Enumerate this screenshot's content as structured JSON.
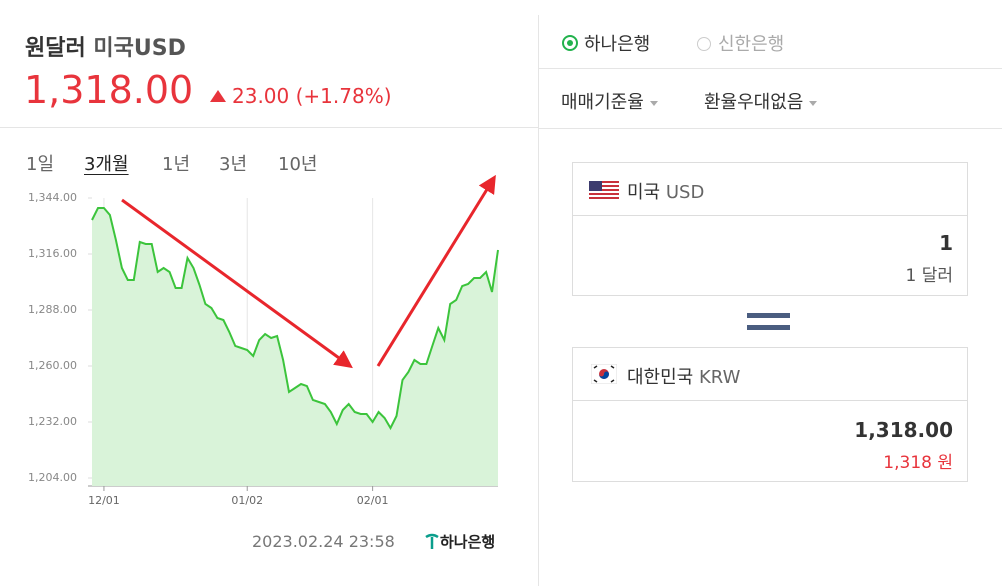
{
  "header": {
    "pair": "원달러",
    "name": "미국USD",
    "rate": "1,318.00",
    "change": "23.00",
    "change_pct": "(+1.78%)"
  },
  "periods": [
    "1일",
    "3개월",
    "1년",
    "3년",
    "10년"
  ],
  "chart_data": {
    "type": "line",
    "color": "#3cc43c",
    "fill": "#d9f3d9",
    "grid": "x",
    "categories": [
      null,
      null,
      "12/01",
      null,
      null,
      null,
      null,
      null,
      null,
      null,
      null,
      null,
      null,
      null,
      null,
      null,
      null,
      null,
      null,
      null,
      null,
      null,
      null,
      null,
      null,
      null,
      "01/02",
      null,
      null,
      null,
      null,
      null,
      null,
      null,
      null,
      null,
      null,
      null,
      null,
      null,
      null,
      null,
      null,
      null,
      null,
      null,
      null,
      "02/01",
      null,
      null,
      null,
      null,
      null,
      null,
      null,
      null,
      null,
      null,
      null,
      null,
      null,
      null,
      null,
      null,
      null,
      null,
      null,
      null,
      null
    ],
    "values": [
      1333,
      1339,
      1339,
      1335.5,
      1323,
      1309,
      1303,
      1303,
      1322,
      1321,
      1321,
      1307,
      1309,
      1307,
      1299,
      1299,
      1314,
      1309,
      1300.5,
      1291,
      1289,
      1284,
      1283,
      1277,
      1270,
      1269,
      1268,
      1265,
      1273,
      1276,
      1274,
      1275,
      1263,
      1247,
      1249,
      1251,
      1250,
      1243,
      1242,
      1241,
      1237,
      1231,
      1238,
      1241,
      1237,
      1236,
      1236,
      1232,
      1237,
      1234,
      1229,
      1235,
      1253,
      1257,
      1263,
      1261,
      1261,
      1270,
      1279,
      1273,
      1291,
      1293,
      1300,
      1301,
      1304,
      1304,
      1307,
      1297,
      1318
    ],
    "ylim": [
      1204,
      1344
    ],
    "yticks": [
      {
        "value": 1344,
        "label": "1,344.00"
      },
      {
        "value": 1316,
        "label": "1,316.00"
      },
      {
        "value": 1288,
        "label": "1,288.00"
      },
      {
        "value": 1260,
        "label": "1,260.00"
      },
      {
        "value": 1232,
        "label": "1,232.00"
      },
      {
        "value": 1204,
        "label": "1,204.00"
      }
    ]
  },
  "timestamp": "2023.02.24 23:58",
  "source": "하나은행",
  "banks": [
    "하나은행",
    "신한은행"
  ],
  "options": [
    "매매기준율",
    "환율우대없음"
  ],
  "converter": {
    "from": {
      "country": "미국",
      "code": "USD",
      "amount": "1",
      "unit_amount": "1 달러"
    },
    "to": {
      "country": "대한민국",
      "code": "KRW",
      "amount": "1,318.00",
      "unit_amount": "1,318 원"
    }
  }
}
